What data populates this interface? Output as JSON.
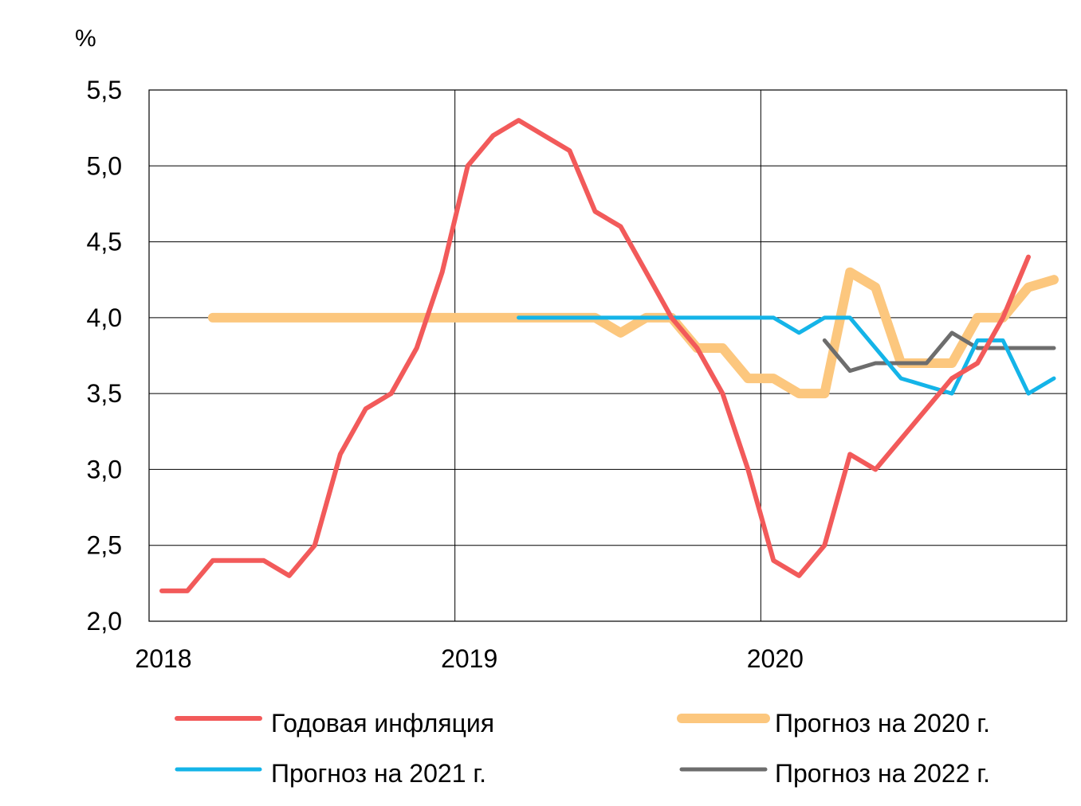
{
  "chart_data": {
    "type": "line",
    "title": "",
    "unit_label": "%",
    "xlabel": "",
    "ylabel": "",
    "x_ticks": [
      "2018",
      "2019",
      "2020"
    ],
    "y_ticks": [
      "2,0",
      "2,5",
      "3,0",
      "3,5",
      "4,0",
      "4,5",
      "5,0",
      "5,5"
    ],
    "ylim": [
      2.0,
      5.5
    ],
    "xlim": [
      "2018-01",
      "2020-12"
    ],
    "grid": true,
    "legend_position": "bottom",
    "x": [
      "2018-01",
      "2018-02",
      "2018-03",
      "2018-04",
      "2018-05",
      "2018-06",
      "2018-07",
      "2018-08",
      "2018-09",
      "2018-10",
      "2018-11",
      "2018-12",
      "2019-01",
      "2019-02",
      "2019-03",
      "2019-04",
      "2019-05",
      "2019-06",
      "2019-07",
      "2019-08",
      "2019-09",
      "2019-10",
      "2019-11",
      "2019-12",
      "2020-01",
      "2020-02",
      "2020-03",
      "2020-04",
      "2020-05",
      "2020-06",
      "2020-07",
      "2020-08",
      "2020-09",
      "2020-10",
      "2020-11",
      "2020-12"
    ],
    "series": [
      {
        "name": "Годовая инфляция",
        "color": "#f25a5a",
        "width": 6,
        "values": [
          2.2,
          2.2,
          2.4,
          2.4,
          2.4,
          2.3,
          2.5,
          3.1,
          3.4,
          3.5,
          3.8,
          4.3,
          5.0,
          5.2,
          5.3,
          5.2,
          5.1,
          4.7,
          4.6,
          4.3,
          4.0,
          3.8,
          3.5,
          3.0,
          2.4,
          2.3,
          2.5,
          3.1,
          3.0,
          3.2,
          3.4,
          3.6,
          3.7,
          4.0,
          4.4,
          null
        ]
      },
      {
        "name": "Прогноз на 2020 г.",
        "color": "#fcc77e",
        "width": 12,
        "values": [
          null,
          null,
          4.0,
          4.0,
          4.0,
          4.0,
          4.0,
          4.0,
          4.0,
          4.0,
          4.0,
          4.0,
          4.0,
          4.0,
          4.0,
          4.0,
          4.0,
          4.0,
          3.9,
          4.0,
          4.0,
          3.8,
          3.8,
          3.6,
          3.6,
          3.5,
          3.5,
          4.3,
          4.2,
          3.7,
          3.7,
          3.7,
          4.0,
          4.0,
          4.2,
          4.25
        ]
      },
      {
        "name": "Прогноз на 2021 г.",
        "color": "#14b4e8",
        "width": 5,
        "values": [
          null,
          null,
          null,
          null,
          null,
          null,
          null,
          null,
          null,
          null,
          null,
          null,
          null,
          null,
          4.0,
          4.0,
          4.0,
          4.0,
          4.0,
          4.0,
          4.0,
          4.0,
          4.0,
          4.0,
          4.0,
          3.9,
          4.0,
          4.0,
          3.8,
          3.6,
          3.55,
          3.5,
          3.85,
          3.85,
          3.5,
          3.6
        ]
      },
      {
        "name": "Прогноз на 2022 г.",
        "color": "#6d6d6d",
        "width": 5,
        "values": [
          null,
          null,
          null,
          null,
          null,
          null,
          null,
          null,
          null,
          null,
          null,
          null,
          null,
          null,
          null,
          null,
          null,
          null,
          null,
          null,
          null,
          null,
          null,
          null,
          null,
          null,
          3.85,
          3.65,
          3.7,
          3.7,
          3.7,
          3.9,
          3.8,
          3.8,
          3.8,
          3.8
        ]
      }
    ]
  }
}
